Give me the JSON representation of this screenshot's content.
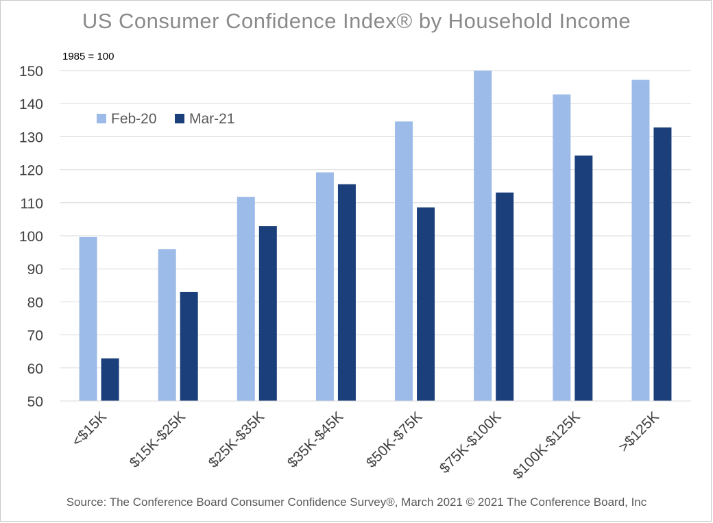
{
  "chart_data": {
    "type": "bar",
    "title": "US Consumer Confidence Index® by Household Income",
    "subtitle": "1985 = 100",
    "categories": [
      "<$15K",
      "$15K-$25K",
      "$25K-$35K",
      "$35K-$45K",
      "$50K-$75K",
      "$75K-$100K",
      "$100K-$125K",
      ">$125K"
    ],
    "series": [
      {
        "name": "Feb-20",
        "color": "#9dbbe8",
        "values": [
          99.6,
          96.0,
          111.8,
          119.2,
          134.6,
          150.0,
          142.8,
          147.2
        ]
      },
      {
        "name": "Mar-21",
        "color": "#1a3f7a",
        "values": [
          62.9,
          83.0,
          102.9,
          115.6,
          108.6,
          113.1,
          124.3,
          132.8
        ]
      }
    ],
    "ylim": [
      50,
      150
    ],
    "yticks": [
      50,
      60,
      70,
      80,
      90,
      100,
      110,
      120,
      130,
      140,
      150
    ],
    "grid": true,
    "legend_position": "top-left",
    "source": "Source: The Conference Board Consumer Confidence Survey®, March 2021 © 2021 The Conference Board, Inc"
  }
}
